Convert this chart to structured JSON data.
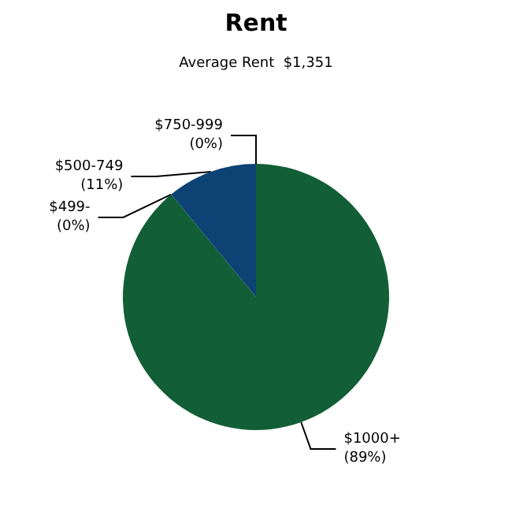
{
  "chart_data": {
    "type": "pie",
    "title": "Rent",
    "subtitle": "Average Rent  $1,351",
    "categories": [
      "$1000+",
      "$499-",
      "$500-749",
      "$750-999"
    ],
    "values": [
      89,
      0,
      11,
      0
    ],
    "value_labels": [
      "(89%)",
      "(0%)",
      "(11%)",
      "(0%)"
    ],
    "colors": [
      "#125e36",
      "#1a6b3f",
      "#0d4274",
      "#0f4f4f"
    ],
    "legend": false
  }
}
